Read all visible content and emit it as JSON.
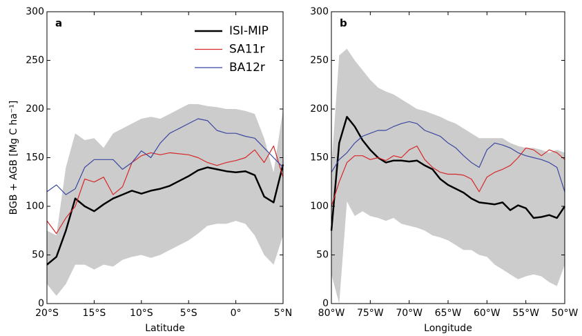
{
  "chart_data": [
    {
      "type": "line",
      "panel_label": "a",
      "xlabel": "Latitude",
      "ylabel": "BGB + AGB [Mg C ha⁻¹]",
      "legend": "upper right",
      "x": [
        -20,
        -19,
        -18,
        -17,
        -16,
        -15,
        -14,
        -13,
        -12,
        -11,
        -10,
        -9,
        -8,
        -7,
        -6,
        -5,
        -4,
        -3,
        -2,
        -1,
        0,
        1,
        2,
        3,
        4,
        5
      ],
      "band_color": "#cccccc",
      "band_upper": [
        75,
        70,
        140,
        175,
        168,
        170,
        160,
        175,
        180,
        185,
        190,
        192,
        190,
        195,
        200,
        205,
        205,
        203,
        202,
        200,
        200,
        198,
        195,
        170,
        135,
        200
      ],
      "band_lower": [
        20,
        8,
        20,
        40,
        40,
        35,
        40,
        38,
        45,
        48,
        50,
        47,
        50,
        55,
        60,
        65,
        72,
        80,
        82,
        82,
        85,
        82,
        70,
        50,
        40,
        70
      ],
      "series": [
        {
          "name": "ISI-MIP",
          "color": "#000000",
          "width": 2.5,
          "values": [
            40,
            48,
            75,
            108,
            100,
            95,
            102,
            108,
            112,
            116,
            113,
            116,
            118,
            121,
            126,
            131,
            137,
            140,
            138,
            136,
            135,
            136,
            132,
            110,
            104,
            143
          ]
        },
        {
          "name": "SA11r",
          "color": "#d62728",
          "width": 1.2,
          "values": [
            85,
            72,
            88,
            100,
            128,
            125,
            130,
            112,
            120,
            145,
            152,
            155,
            153,
            155,
            154,
            153,
            150,
            145,
            142,
            145,
            147,
            150,
            158,
            145,
            162,
            130
          ]
        },
        {
          "name": "BA12r",
          "color": "#3a46a0",
          "width": 1.2,
          "values": [
            115,
            122,
            112,
            118,
            140,
            148,
            148,
            148,
            138,
            145,
            157,
            150,
            165,
            175,
            180,
            185,
            190,
            188,
            178,
            175,
            175,
            172,
            170,
            160,
            150,
            140
          ]
        }
      ],
      "xlim": [
        -20,
        5
      ],
      "xticks": [
        {
          "value": -20,
          "label": "20°S"
        },
        {
          "value": -15,
          "label": "15°S"
        },
        {
          "value": -10,
          "label": "10°S"
        },
        {
          "value": -5,
          "label": "5°S"
        },
        {
          "value": 0,
          "label": "0°"
        },
        {
          "value": 5,
          "label": "5°N"
        }
      ],
      "ylim": [
        0,
        300
      ],
      "yticks": [
        0,
        50,
        100,
        150,
        200,
        250,
        300
      ]
    },
    {
      "type": "line",
      "panel_label": "b",
      "xlabel": "Longitude",
      "x": [
        -80,
        -79,
        -78,
        -77,
        -76,
        -75,
        -74,
        -73,
        -72,
        -71,
        -70,
        -69,
        -68,
        -67,
        -66,
        -65,
        -64,
        -63,
        -62,
        -61,
        -60,
        -59,
        -58,
        -57,
        -56,
        -55,
        -54,
        -53,
        -52,
        -51,
        -50
      ],
      "band_color": "#cccccc",
      "band_upper": [
        140,
        255,
        262,
        250,
        240,
        230,
        222,
        218,
        215,
        210,
        205,
        200,
        198,
        195,
        192,
        188,
        185,
        180,
        175,
        170,
        170,
        170,
        170,
        165,
        162,
        160,
        160,
        158,
        155,
        158,
        155
      ],
      "band_lower": [
        30,
        0,
        105,
        90,
        95,
        90,
        88,
        85,
        88,
        82,
        80,
        78,
        75,
        70,
        68,
        65,
        60,
        55,
        55,
        50,
        48,
        40,
        35,
        30,
        25,
        28,
        30,
        28,
        22,
        18,
        40
      ],
      "series": [
        {
          "color": "#000000",
          "width": 2.5,
          "values": [
            75,
            165,
            192,
            182,
            168,
            158,
            150,
            145,
            147,
            147,
            146,
            147,
            142,
            138,
            128,
            122,
            118,
            114,
            108,
            104,
            103,
            102,
            104,
            96,
            101,
            98,
            88,
            89,
            91,
            88,
            100
          ]
        },
        {
          "color": "#d62728",
          "width": 1.2,
          "values": [
            100,
            125,
            145,
            152,
            152,
            148,
            150,
            147,
            152,
            150,
            158,
            162,
            148,
            140,
            135,
            133,
            133,
            132,
            128,
            115,
            130,
            135,
            138,
            142,
            150,
            160,
            158,
            152,
            158,
            155,
            148
          ]
        },
        {
          "color": "#3a46a0",
          "width": 1.2,
          "values": [
            135,
            148,
            155,
            165,
            172,
            175,
            178,
            178,
            182,
            185,
            187,
            185,
            178,
            175,
            172,
            165,
            160,
            152,
            145,
            140,
            158,
            165,
            163,
            160,
            155,
            152,
            150,
            148,
            145,
            140,
            115
          ]
        }
      ],
      "xlim": [
        -80,
        -50
      ],
      "xticks": [
        {
          "value": -80,
          "label": "80°W"
        },
        {
          "value": -75,
          "label": "75°W"
        },
        {
          "value": -70,
          "label": "70°W"
        },
        {
          "value": -65,
          "label": "65°W"
        },
        {
          "value": -60,
          "label": "60°W"
        },
        {
          "value": -55,
          "label": "55°W"
        },
        {
          "value": -50,
          "label": "50°W"
        }
      ],
      "ylim": [
        0,
        300
      ],
      "yticks": [
        0,
        50,
        100,
        150,
        200,
        250,
        300
      ]
    }
  ]
}
